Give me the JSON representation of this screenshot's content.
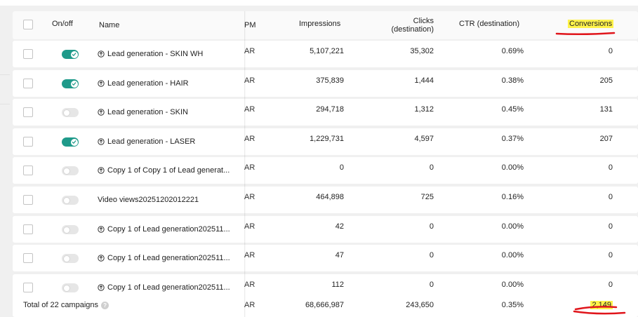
{
  "columns": {
    "onoff": "On/off",
    "name": "Name",
    "cpm_partial": "PM",
    "impressions": "Impressions",
    "clicks_line1": "Clicks",
    "clicks_line2": "(destination)",
    "ctr": "CTR (destination)",
    "conversions": "Conversions"
  },
  "rows": [
    {
      "on": true,
      "icon": "campaign-icon",
      "name": "Lead generation - SKIN WH",
      "cpm": "AR",
      "impressions": "5,107,221",
      "clicks": "35,302",
      "ctr": "0.69%",
      "conversions": "0"
    },
    {
      "on": true,
      "icon": "campaign-icon",
      "name": "Lead generation - HAIR",
      "cpm": "AR",
      "impressions": "375,839",
      "clicks": "1,444",
      "ctr": "0.38%",
      "conversions": "205"
    },
    {
      "on": false,
      "icon": "campaign-icon",
      "name": "Lead generation - SKIN",
      "cpm": "AR",
      "impressions": "294,718",
      "clicks": "1,312",
      "ctr": "0.45%",
      "conversions": "131"
    },
    {
      "on": true,
      "icon": "campaign-icon",
      "name": "Lead generation - LASER",
      "cpm": "AR",
      "impressions": "1,229,731",
      "clicks": "4,597",
      "ctr": "0.37%",
      "conversions": "207"
    },
    {
      "on": false,
      "icon": "campaign-icon",
      "name": "Copy 1 of Copy 1 of Lead generat...",
      "cpm": "AR",
      "impressions": "0",
      "clicks": "0",
      "ctr": "0.00%",
      "conversions": "0"
    },
    {
      "on": false,
      "icon": "",
      "name": "Video views20251202012221",
      "cpm": "AR",
      "impressions": "464,898",
      "clicks": "725",
      "ctr": "0.16%",
      "conversions": "0"
    },
    {
      "on": false,
      "icon": "campaign-icon",
      "name": "Copy 1 of Lead generation202511...",
      "cpm": "AR",
      "impressions": "42",
      "clicks": "0",
      "ctr": "0.00%",
      "conversions": "0"
    },
    {
      "on": false,
      "icon": "campaign-icon",
      "name": "Copy 1 of Lead generation202511...",
      "cpm": "AR",
      "impressions": "47",
      "clicks": "0",
      "ctr": "0.00%",
      "conversions": "0"
    },
    {
      "on": false,
      "icon": "campaign-icon",
      "name": "Copy 1 of Lead generation202511...",
      "cpm": "AR",
      "impressions": "112",
      "clicks": "0",
      "ctr": "0.00%",
      "conversions": "0"
    }
  ],
  "footer": {
    "label": "Total of 22 campaigns",
    "help_icon": "?",
    "cpm": "AR",
    "impressions": "68,666,987",
    "clicks": "243,650",
    "ctr": "0.35%",
    "conversions": "2,149"
  },
  "colors": {
    "toggle_on": "#1f9a8a",
    "highlight": "#fff34a",
    "annotation_red": "#e0151b"
  }
}
